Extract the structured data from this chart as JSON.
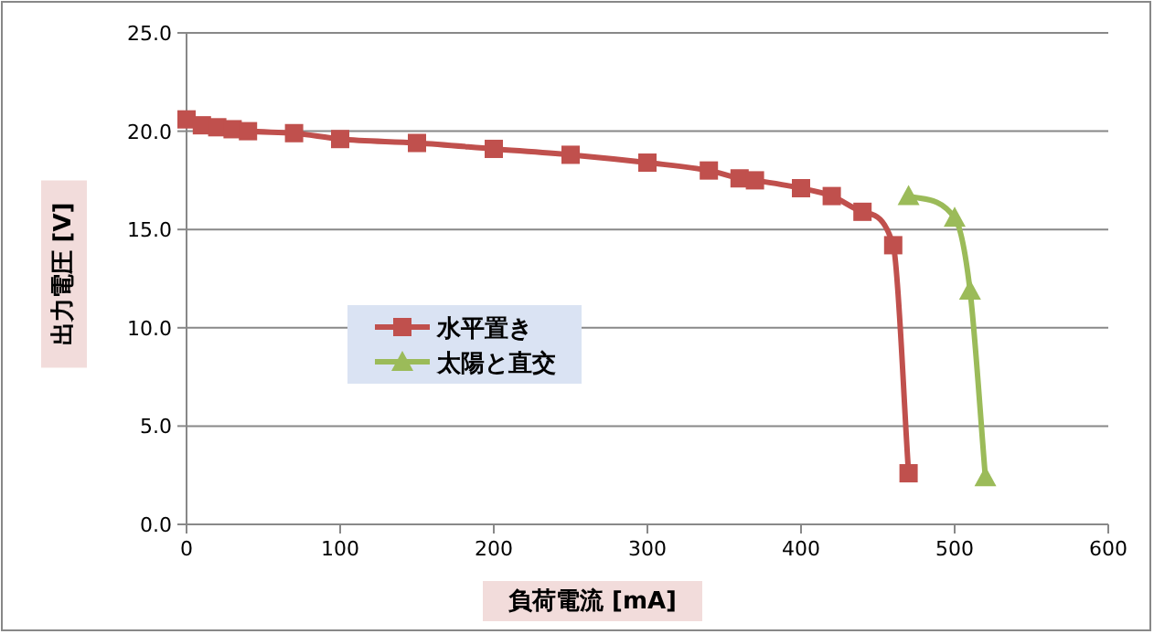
{
  "chart_data": {
    "type": "line",
    "xlabel": "負荷電流 [mA]",
    "ylabel": "出力電圧 [V]",
    "xlim": [
      0,
      600
    ],
    "xticks": [
      0,
      100,
      200,
      300,
      400,
      500,
      600
    ],
    "ylim": [
      0,
      25
    ],
    "yticks": [
      {
        "value": 0,
        "label": "0.0"
      },
      {
        "value": 5,
        "label": "5.0"
      },
      {
        "value": 10,
        "label": "10.0"
      },
      {
        "value": 15,
        "label": "15.0"
      },
      {
        "value": 20,
        "label": "20.0"
      },
      {
        "value": 25,
        "label": "25.0"
      }
    ],
    "grid": "y",
    "legend": "left",
    "series": [
      {
        "name": "水平置き",
        "color": "#c0504d",
        "marker": "square",
        "x": [
          0,
          10,
          20,
          30,
          40,
          70,
          100,
          150,
          200,
          250,
          300,
          340,
          360,
          370,
          400,
          420,
          440,
          460,
          470
        ],
        "values": [
          20.6,
          20.3,
          20.2,
          20.1,
          20.0,
          19.9,
          19.6,
          19.4,
          19.1,
          18.8,
          18.4,
          18.0,
          17.6,
          17.5,
          17.1,
          16.7,
          15.9,
          14.2,
          2.6
        ]
      },
      {
        "name": "太陽と直交",
        "color": "#9bbb59",
        "marker": "triangle",
        "x": [
          470,
          500,
          510,
          520
        ],
        "values": [
          16.7,
          15.6,
          11.9,
          2.4
        ]
      }
    ]
  }
}
